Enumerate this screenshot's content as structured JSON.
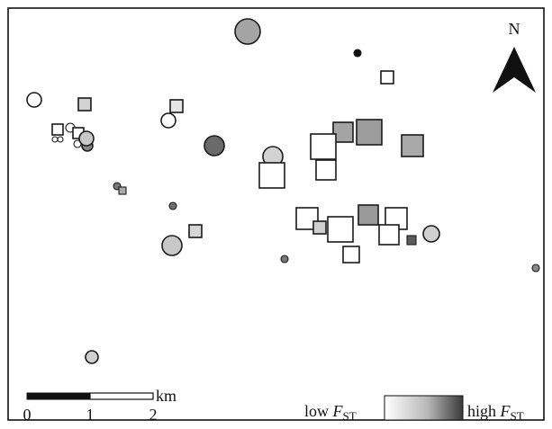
{
  "north_label": "N",
  "scale_bar": {
    "unit": "km",
    "ticks": [
      "0",
      "1",
      "2"
    ]
  },
  "legend": {
    "low_prefix": "low ",
    "high_prefix": "high ",
    "stat_symbol": "F",
    "stat_subscript": "ST"
  },
  "colors": {
    "frame": "#111111",
    "marker_stroke": "#222222",
    "fst_low": "#ffffff",
    "fst_mid": "#c8c8c8",
    "fst_high": "#505050"
  },
  "marker_types": [
    "circle",
    "square"
  ]
}
